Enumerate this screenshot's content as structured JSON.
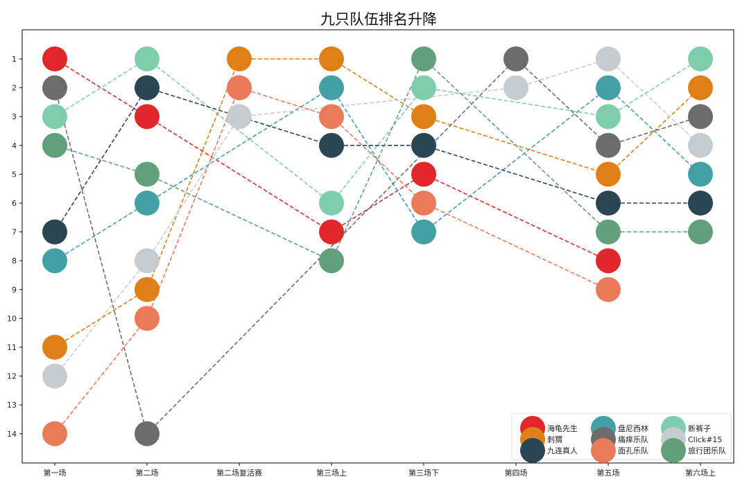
{
  "chart_data": {
    "type": "line",
    "title": "九只队伍排名升降",
    "xlabel": "",
    "ylabel": "",
    "categories": [
      "第一场",
      "第二场",
      "第二场复活赛",
      "第三场上",
      "第三场下",
      "第四场",
      "第五场",
      "第六场上"
    ],
    "yticks": [
      1,
      2,
      3,
      4,
      5,
      6,
      7,
      8,
      9,
      10,
      11,
      12,
      13,
      14
    ],
    "ylim": [
      15,
      0
    ],
    "y_inverted": true,
    "grid": false,
    "legend_position": "lower-right",
    "series": [
      {
        "name": "海龟先生",
        "color": "#e0282a",
        "values": [
          1,
          3,
          null,
          7,
          5,
          null,
          8,
          null
        ]
      },
      {
        "name": "盘尼西林",
        "color": "#43a0a4",
        "values": [
          8,
          6,
          null,
          2,
          7,
          null,
          2,
          5
        ]
      },
      {
        "name": "新裤子",
        "color": "#7fcdad",
        "values": [
          3,
          1,
          null,
          6,
          2,
          null,
          3,
          1
        ]
      },
      {
        "name": "刺猬",
        "color": "#df7f15",
        "values": [
          11,
          9,
          1,
          1,
          3,
          null,
          5,
          2
        ]
      },
      {
        "name": "痛痒乐队",
        "color": "#6c6c6c",
        "values": [
          2,
          14,
          null,
          null,
          null,
          1,
          4,
          3
        ]
      },
      {
        "name": "Click#15",
        "color": "#c7ccd0",
        "values": [
          12,
          8,
          3,
          null,
          null,
          2,
          1,
          4
        ]
      },
      {
        "name": "九连真人",
        "color": "#2a4553",
        "values": [
          7,
          2,
          null,
          4,
          4,
          null,
          6,
          6
        ]
      },
      {
        "name": "面孔乐队",
        "color": "#ea7a5a",
        "values": [
          14,
          10,
          2,
          3,
          6,
          null,
          9,
          null
        ]
      },
      {
        "name": "旅行团乐队",
        "color": "#62a07b",
        "values": [
          4,
          5,
          null,
          8,
          1,
          null,
          7,
          7
        ]
      }
    ]
  }
}
